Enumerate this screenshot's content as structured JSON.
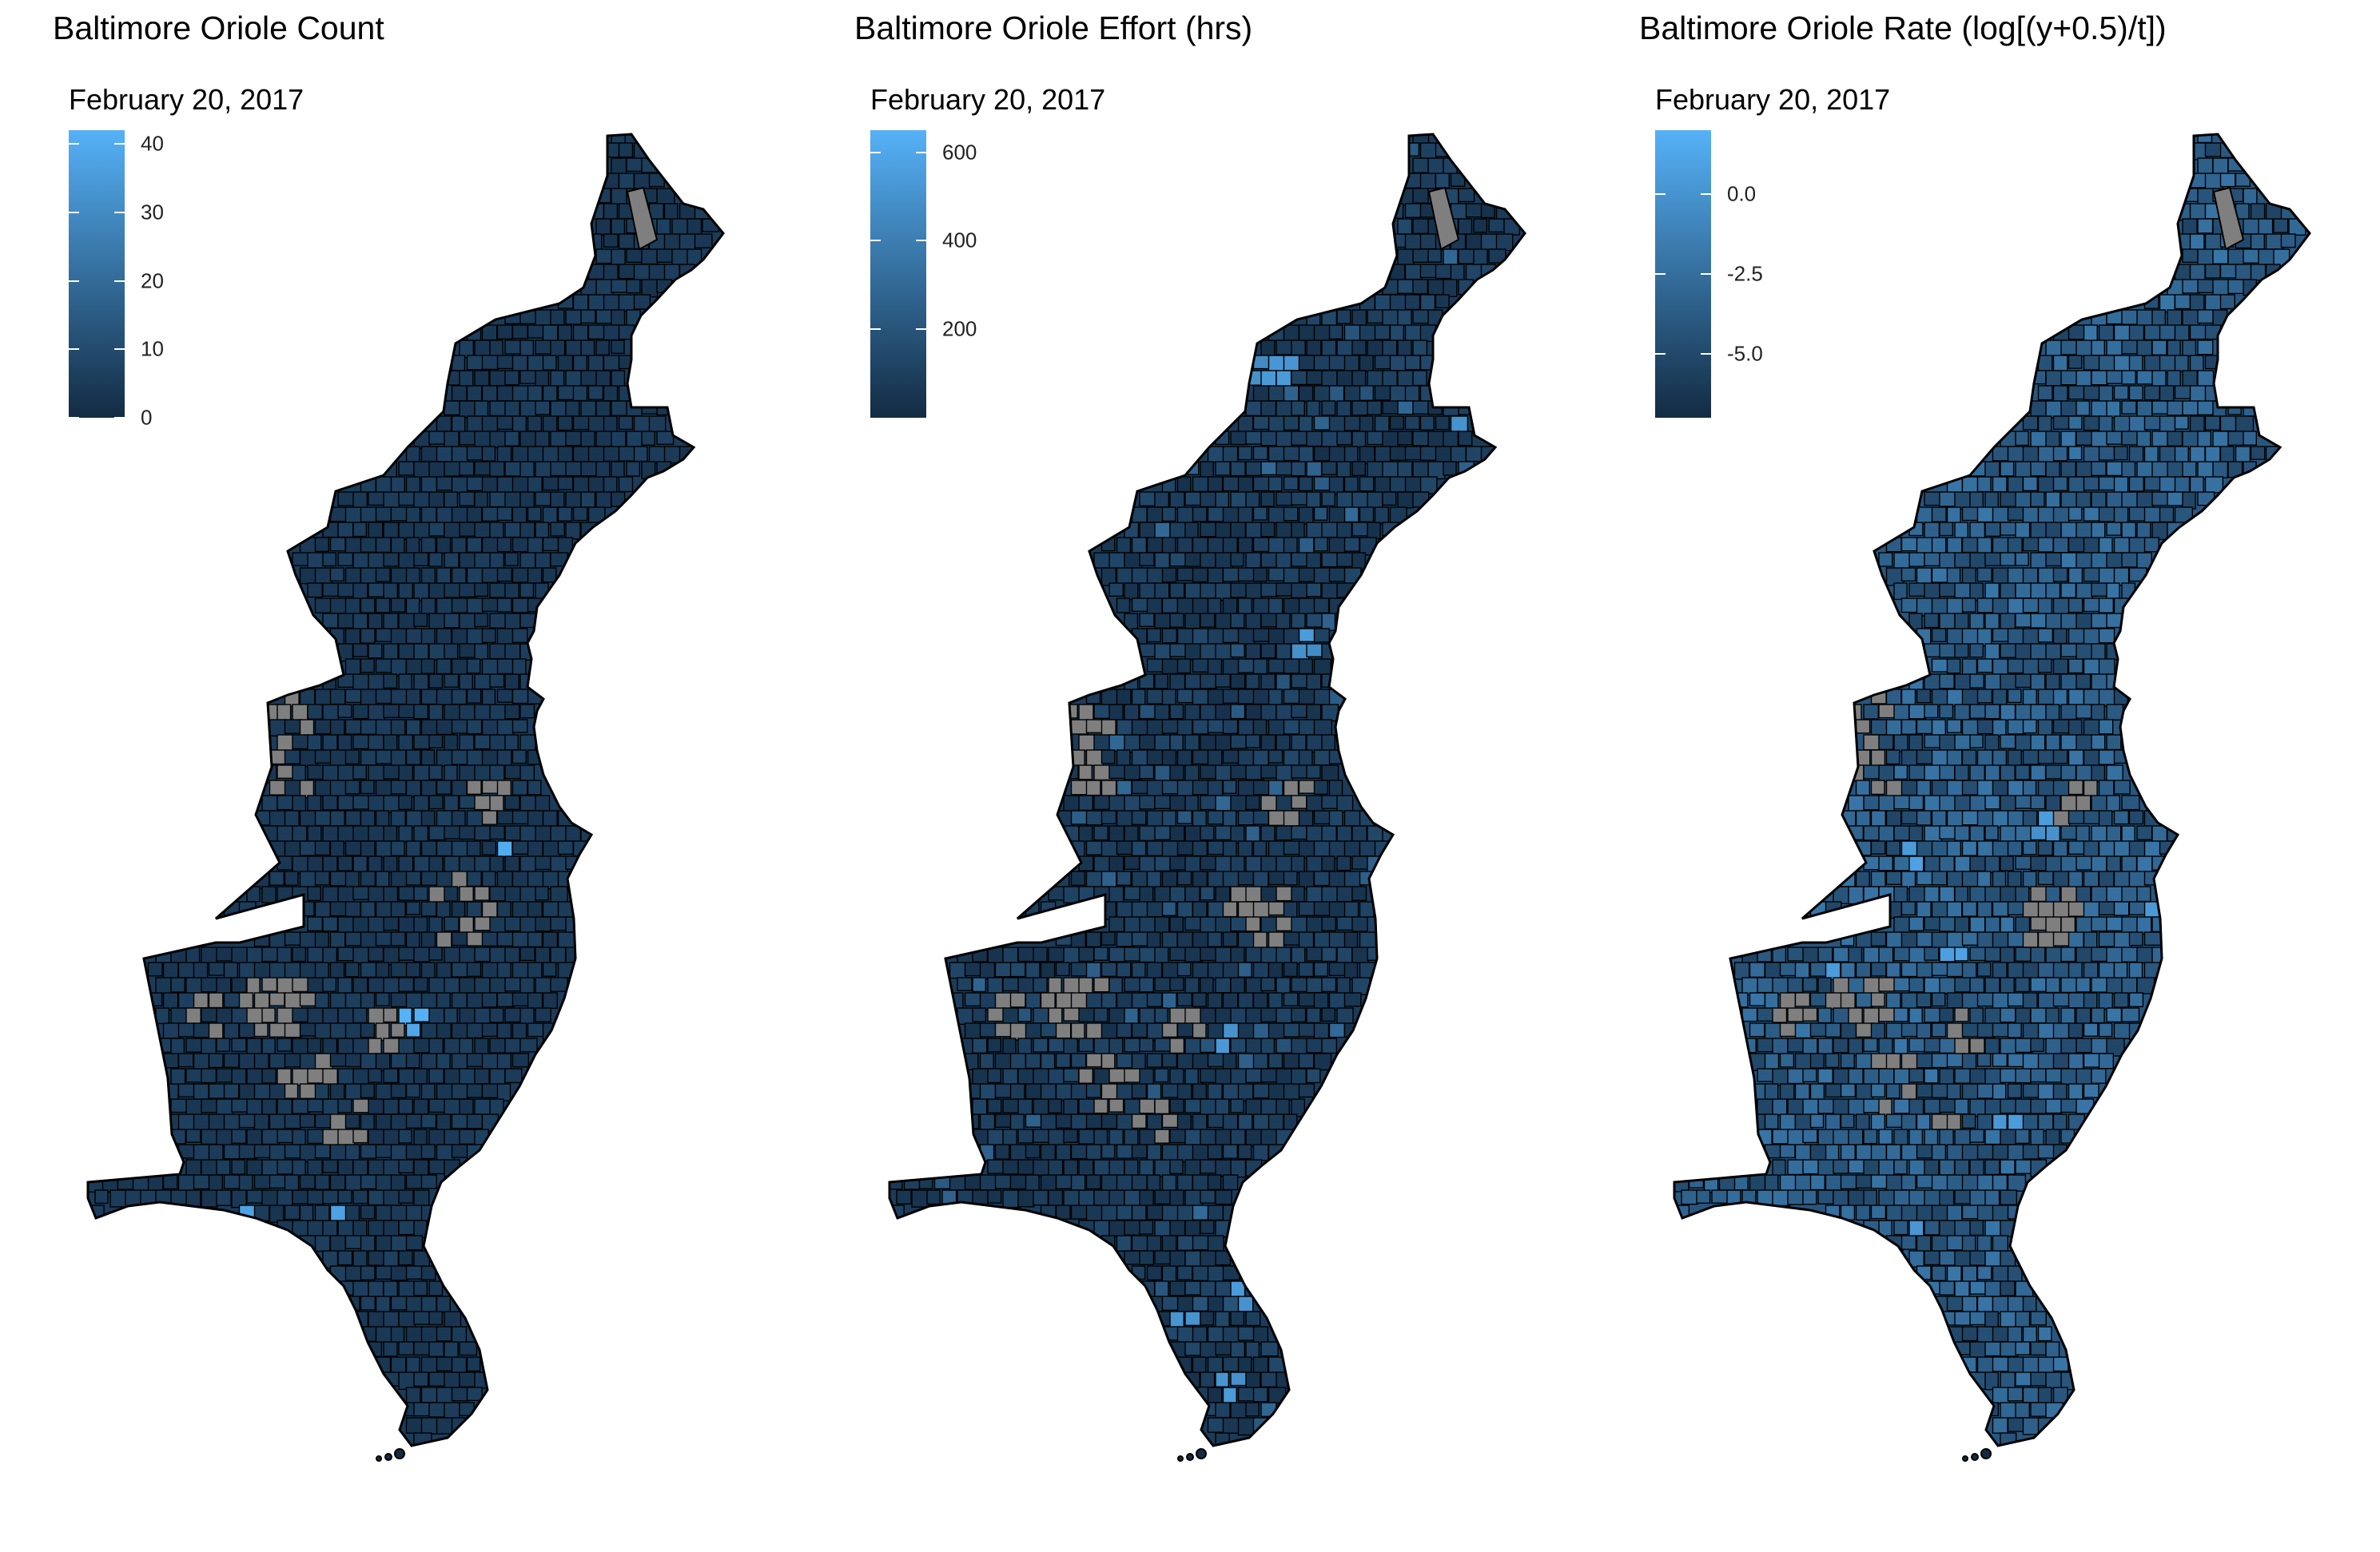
{
  "panels": [
    {
      "title": "Baltimore Oriole Count",
      "legend_title": "February 20, 2017",
      "legend_ticks": [
        "0",
        "10",
        "20",
        "30",
        "40"
      ],
      "scale_range": [
        0,
        42
      ],
      "tick_values": [
        0,
        10,
        20,
        30,
        40
      ],
      "hotspot_level": 0.25,
      "highlight_level": 0.85,
      "gray_zones": "many"
    },
    {
      "title": "Baltimore Oriole Effort (hrs)",
      "legend_title": "February 20, 2017",
      "legend_ticks": [
        "200",
        "400",
        "600"
      ],
      "scale_range": [
        0,
        650
      ],
      "tick_values": [
        200,
        400,
        600
      ],
      "hotspot_level": 0.45,
      "highlight_level": 0.7,
      "gray_zones": "many"
    },
    {
      "title": "Baltimore Oriole Rate (log[(y+0.5)/t])",
      "legend_title": "February 20, 2017",
      "legend_ticks": [
        "0.0",
        "-2.5",
        "-5.0"
      ],
      "scale_range": [
        -7,
        2
      ],
      "tick_values": [
        0,
        -2.5,
        -5
      ],
      "hotspot_level": 0.55,
      "highlight_level": 0.75,
      "gray_zones": "many"
    }
  ],
  "colors": {
    "scale_low": "#132b43",
    "scale_high": "#56b1f7",
    "missing": "#7f7f7f",
    "border": "#000000",
    "background": "#ffffff"
  }
}
